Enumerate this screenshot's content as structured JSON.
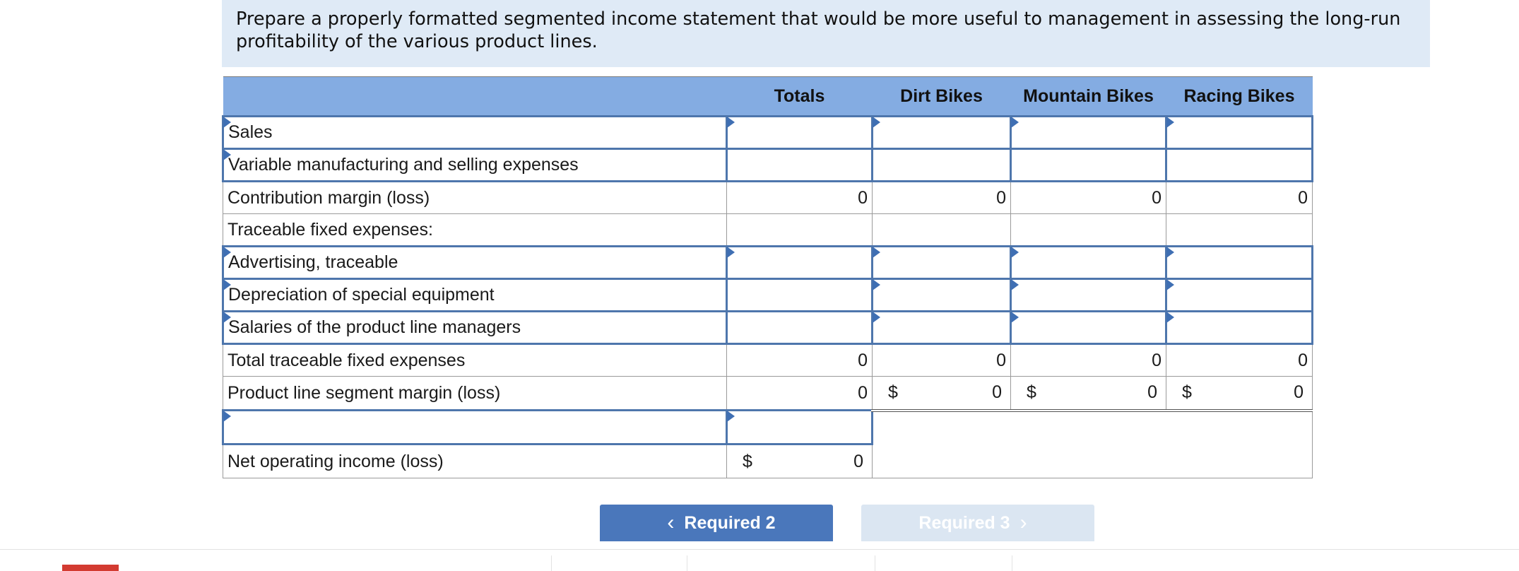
{
  "instruction": "Prepare a properly formatted segmented income statement that would be more useful to management in assessing the long-run profitability of the various product lines.",
  "table": {
    "headers": [
      "",
      "Totals",
      "Dirt Bikes",
      "Mountain Bikes",
      "Racing Bikes"
    ],
    "rows": {
      "sales": "Sales",
      "variable": "Variable manufacturing and selling expenses",
      "cm": "Contribution margin (loss)",
      "cm_values": [
        "0",
        "0",
        "0",
        "0"
      ],
      "traceable_header": "Traceable fixed expenses:",
      "advertising": "Advertising, traceable",
      "depreciation": "Depreciation of special equipment",
      "salaries": "Salaries of the product line managers",
      "total_traceable": "Total traceable fixed expenses",
      "total_traceable_values": [
        "0",
        "0",
        "0",
        "0"
      ],
      "segment_margin": "Product line segment margin (loss)",
      "segment_margin_values": [
        "0",
        "0",
        "0",
        "0"
      ],
      "currency": "$",
      "blank_label": "",
      "net_income": "Net operating income (loss)",
      "net_income_value": "0"
    }
  },
  "nav": {
    "prev_label": "Required 2",
    "next_label": "Required 3",
    "prev_icon": "chevron-left-icon",
    "next_icon": "chevron-right-icon"
  },
  "colors": {
    "header_bg": "#84ace2",
    "instruction_bg": "#dfeaf6",
    "prev_button": "#4a77bb",
    "next_button_disabled": "#dbe6f2",
    "input_border": "#4e76ac"
  }
}
